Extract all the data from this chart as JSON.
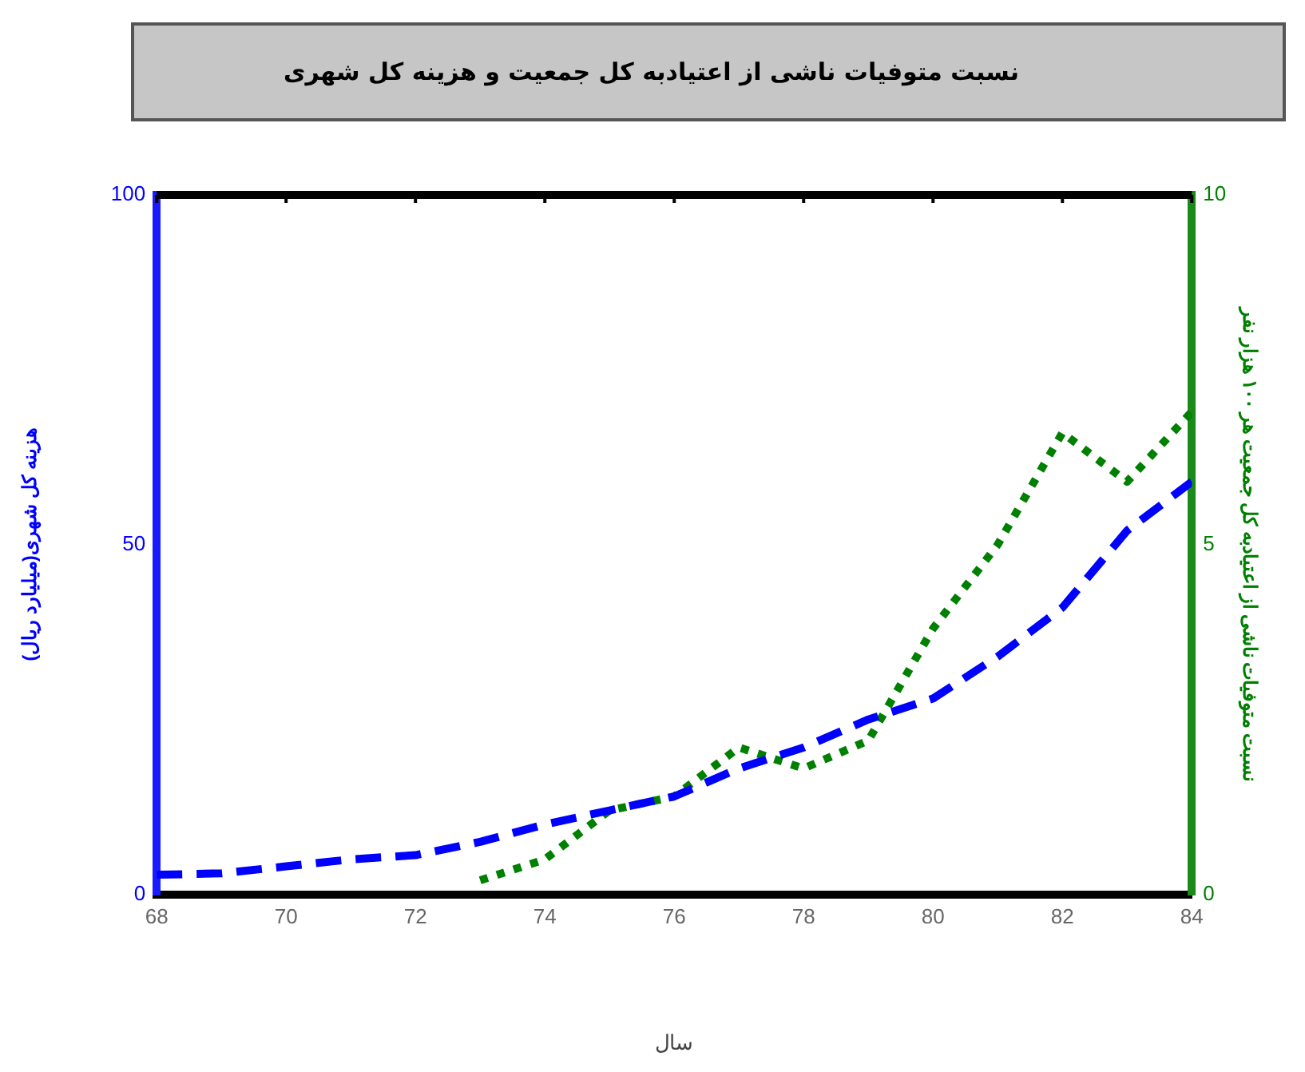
{
  "chart_data": {
    "type": "line",
    "title": "نسبت متوفیات ناشی از اعتیادبه کل جمعیت و هزینه کل شهری",
    "xlabel": "سال",
    "ylabel": "هزینه کل شهری(میلیارد ریال)",
    "y2label": "نسبت متوفیات ناشی از اعتیادبه کل جمعیت هر ۱۰۰ هزار نفر",
    "xlim": [
      68,
      84
    ],
    "xticks": [
      68,
      70,
      72,
      74,
      76,
      78,
      80,
      82,
      84
    ],
    "ylim": [
      0,
      100
    ],
    "yticks": [
      0,
      50,
      100
    ],
    "y2lim": [
      0,
      10
    ],
    "y2ticks": [
      0,
      5,
      10
    ],
    "grid": false,
    "legend": false,
    "marker": "none",
    "series": [
      {
        "color": "#0000ff",
        "line_style": "dashed",
        "x": [
          68,
          69,
          70,
          71,
          72,
          73,
          74,
          75,
          76,
          77,
          78,
          79,
          80,
          81,
          82,
          83,
          84
        ],
        "values": [
          2.8,
          3,
          4,
          5,
          5.6,
          7.5,
          10,
          12,
          14,
          18,
          21,
          25,
          28,
          34,
          41,
          52,
          59
        ]
      },
      {
        "color": "#008000",
        "line_style": "dotted",
        "axis": "y2",
        "x": [
          73,
          74,
          75,
          76,
          77,
          78,
          79,
          80,
          81,
          82,
          83,
          84
        ],
        "values": [
          0.2,
          0.5,
          1.2,
          1.4,
          2.1,
          1.8,
          2.2,
          3.8,
          5,
          6.6,
          5.9,
          6.9
        ]
      }
    ]
  }
}
